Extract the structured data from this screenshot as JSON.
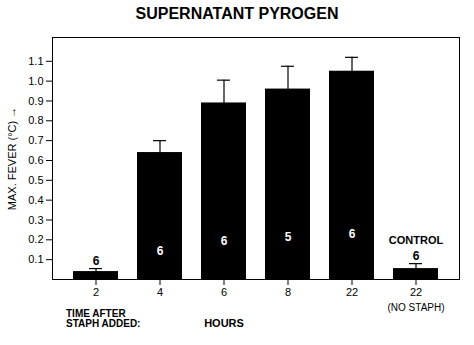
{
  "chart_data": {
    "type": "bar",
    "title": "SUPERNATANT PYROGEN",
    "ylabel": "MAX. FEVER (°C)",
    "xlabel": "HOURS",
    "x_caption": "TIME AFTER\nSTAPH ADDED:",
    "categories": [
      "2",
      "4",
      "6",
      "8",
      "22",
      "22"
    ],
    "values": [
      0.04,
      0.64,
      0.89,
      0.96,
      1.05,
      0.055
    ],
    "errors": [
      0.015,
      0.06,
      0.115,
      0.115,
      0.07,
      0.025
    ],
    "n": [
      6,
      6,
      6,
      5,
      6,
      6
    ],
    "control": [
      false,
      false,
      false,
      false,
      false,
      true
    ],
    "control_label": "CONTROL",
    "control_note": "(NO STAPH)",
    "ylim": [
      0,
      1.22
    ],
    "yticks": [
      0.1,
      0.2,
      0.3,
      0.4,
      0.5,
      0.6,
      0.7,
      0.8,
      0.9,
      {
        "value": 1.0,
        "label": "1.0"
      },
      1.1
    ],
    "grid": false
  }
}
